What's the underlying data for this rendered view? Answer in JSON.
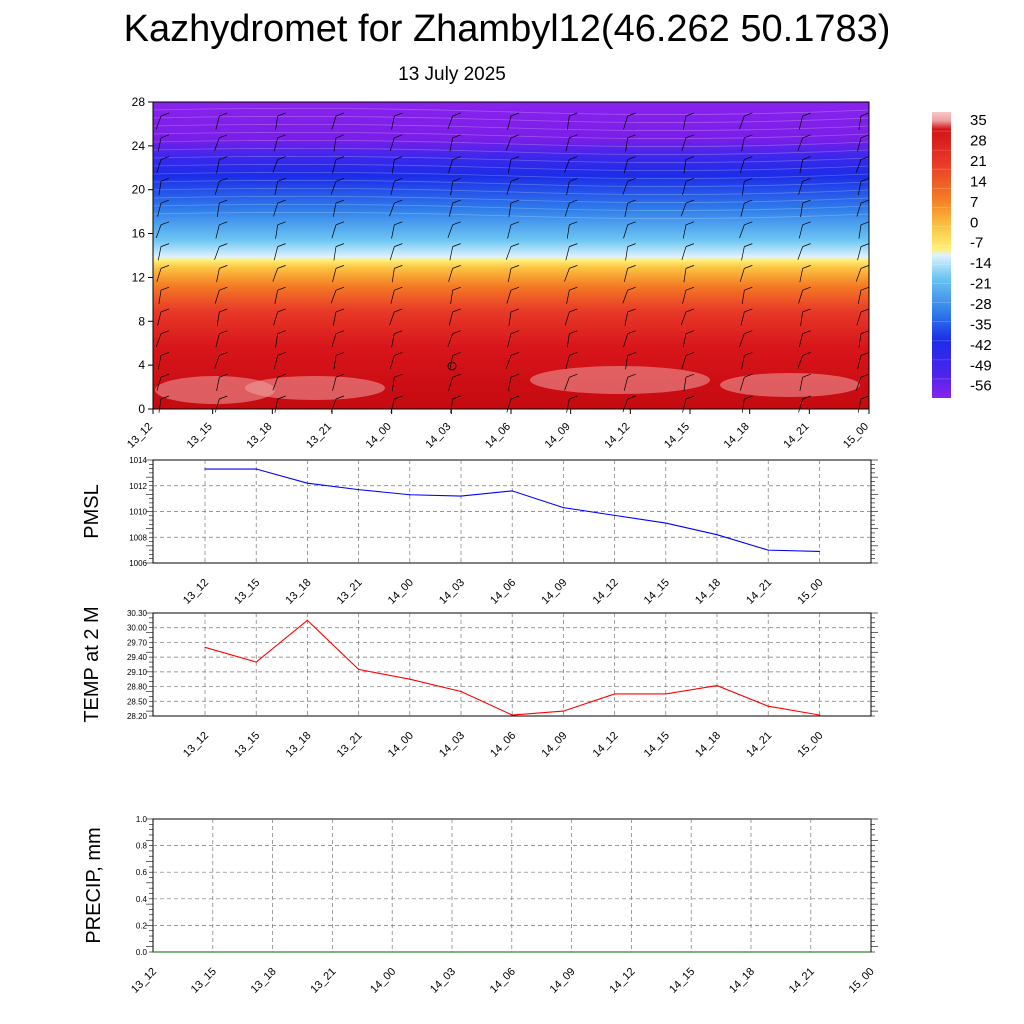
{
  "title": "Kazhydromet for Zhambyl12(46.262 50.1783)",
  "subtitle": "13 July 2025",
  "chart_data": [
    {
      "type": "heatmap",
      "yticks": [
        "0",
        "4",
        "8",
        "12",
        "16",
        "20",
        "24",
        "28"
      ],
      "ylim": [
        0,
        28
      ],
      "x_ticks": [
        "13_12",
        "13_15",
        "13_18",
        "13_21",
        "14_00",
        "14_03",
        "14_06",
        "14_09",
        "14_12",
        "14_15",
        "14_18",
        "14_21",
        "15_00"
      ],
      "colorbar_labels": [
        "35",
        "28",
        "21",
        "14",
        "7",
        "0",
        "-7",
        "-14",
        "-21",
        "-28",
        "-35",
        "-42",
        "-49",
        "-56"
      ],
      "colors": {
        "purple": "#7a1ee8",
        "blue": "#1c2ce8",
        "light_blue": "#4fb0f0",
        "yellow": "#fff07a",
        "orange": "#f59a20",
        "red": "#e43028",
        "dark_red": "#c50e12",
        "pink": "#f0a0a0"
      }
    },
    {
      "type": "line",
      "ylabel": "PMSL",
      "ylim": [
        1006,
        1014
      ],
      "yticks": [
        "1014",
        "1012",
        "1010",
        "1008",
        "1006"
      ],
      "categories": [
        "13_12",
        "13_15",
        "13_18",
        "13_21",
        "14_00",
        "14_03",
        "14_06",
        "14_09",
        "14_12",
        "14_15",
        "14_18",
        "14_21",
        "15_00"
      ],
      "values": [
        1013.3,
        1013.3,
        1012.2,
        1011.7,
        1011.3,
        1011.2,
        1011.6,
        1010.3,
        1009.7,
        1009.1,
        1008.2,
        1007.0,
        1006.9
      ],
      "color": "#0000ff"
    },
    {
      "type": "line",
      "ylabel": "TEMP at 2 M",
      "ylim": [
        28.2,
        30.3
      ],
      "yticks": [
        "30.30",
        "30.00",
        "29.70",
        "29.40",
        "29.10",
        "28.80",
        "28.50",
        "28.20"
      ],
      "categories": [
        "13_12",
        "13_15",
        "13_18",
        "13_21",
        "14_00",
        "14_03",
        "14_06",
        "14_09",
        "14_12",
        "14_15",
        "14_18",
        "14_21",
        "15_00"
      ],
      "values": [
        29.6,
        29.3,
        30.15,
        29.15,
        28.95,
        28.7,
        28.22,
        28.3,
        28.65,
        28.65,
        28.82,
        28.4,
        28.22
      ],
      "color": "#ff0000"
    },
    {
      "type": "line",
      "ylabel": "PRECIP, mm",
      "ylim": [
        0,
        1.0
      ],
      "yticks": [
        "1.0",
        "0.8",
        "0.6",
        "0.4",
        "0.2",
        "0.0"
      ],
      "categories": [
        "13_12",
        "13_15",
        "13_18",
        "13_21",
        "14_00",
        "14_03",
        "14_06",
        "14_09",
        "14_12",
        "14_15",
        "14_18",
        "14_21",
        "15_00"
      ],
      "values": [
        0,
        0,
        0,
        0,
        0,
        0,
        0,
        0,
        0,
        0,
        0,
        0,
        0
      ],
      "color": "#006400"
    }
  ]
}
